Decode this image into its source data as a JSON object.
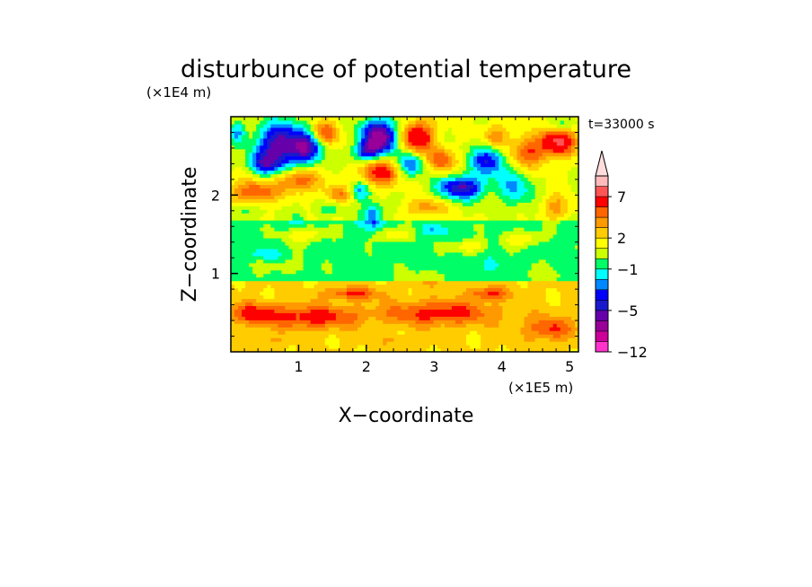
{
  "chart_data": {
    "type": "heatmap",
    "title": "disturbunce of potential temperature",
    "xlabel": "X−coordinate",
    "ylabel": "Z−coordinate",
    "x_unit": "(×1E5 m)",
    "y_unit": "(×1E4 m)",
    "time_label": "t=33000 s",
    "xlim": [
      0,
      5.13
    ],
    "ylim": [
      0,
      3.0
    ],
    "x_ticks": [
      {
        "value": 1,
        "label": "1"
      },
      {
        "value": 2,
        "label": "2"
      },
      {
        "value": 3,
        "label": "3"
      },
      {
        "value": 4,
        "label": "4"
      },
      {
        "value": 5,
        "label": "5"
      }
    ],
    "y_ticks": [
      {
        "value": 1,
        "label": "1"
      },
      {
        "value": 2,
        "label": "2"
      }
    ],
    "colorbar": {
      "extend": "max",
      "levels": [
        -12,
        -10,
        -8,
        -6,
        -5,
        -4,
        -3,
        -2,
        -1,
        0,
        1,
        2,
        3,
        4,
        5,
        7,
        9,
        11
      ],
      "colors": [
        "#ff33cc",
        "#cc0099",
        "#990099",
        "#6600aa",
        "#1a1acc",
        "#0000ff",
        "#0088ff",
        "#00ffff",
        "#00ff66",
        "#ccff00",
        "#ffff00",
        "#ffcc00",
        "#ff9900",
        "#ff6600",
        "#ff0000",
        "#ff5555",
        "#ffbbbb"
      ],
      "extend_color": "#ffdddd",
      "tick_labels": [
        {
          "level": -12,
          "label": "−12"
        },
        {
          "level": -5,
          "label": "−5"
        },
        {
          "level": -1,
          "label": "−1"
        },
        {
          "level": 2,
          "label": "2"
        },
        {
          "level": 7,
          "label": "7"
        }
      ]
    },
    "blobs": [
      {
        "x": 0.75,
        "z": 2.65,
        "v": -7,
        "rx": 0.35,
        "rz": 0.28
      },
      {
        "x": 0.5,
        "z": 2.4,
        "v": -4,
        "rx": 0.25,
        "rz": 0.15
      },
      {
        "x": 1.15,
        "z": 2.6,
        "v": -5,
        "rx": 0.2,
        "rz": 0.2
      },
      {
        "x": 2.2,
        "z": 2.75,
        "v": -8,
        "rx": 0.28,
        "rz": 0.22
      },
      {
        "x": 2.0,
        "z": 2.55,
        "v": -4,
        "rx": 0.2,
        "rz": 0.12
      },
      {
        "x": 2.65,
        "z": 2.4,
        "v": -4,
        "rx": 0.2,
        "rz": 0.15
      },
      {
        "x": 3.4,
        "z": 2.1,
        "v": -6,
        "rx": 0.35,
        "rz": 0.15
      },
      {
        "x": 3.8,
        "z": 2.45,
        "v": -5,
        "rx": 0.25,
        "rz": 0.2
      },
      {
        "x": 2.1,
        "z": 1.75,
        "v": -4,
        "rx": 0.15,
        "rz": 0.15
      },
      {
        "x": 1.9,
        "z": 2.05,
        "v": -4,
        "rx": 0.15,
        "rz": 0.12
      },
      {
        "x": 4.2,
        "z": 2.1,
        "v": -3,
        "rx": 0.25,
        "rz": 0.25
      },
      {
        "x": 0.1,
        "z": 2.8,
        "v": -3,
        "rx": 0.12,
        "rz": 0.15
      },
      {
        "x": 4.9,
        "z": 2.9,
        "v": -2,
        "rx": 0.2,
        "rz": 0.1
      },
      {
        "x": 4.85,
        "z": 2.7,
        "v": 6,
        "rx": 0.25,
        "rz": 0.18
      },
      {
        "x": 2.75,
        "z": 2.75,
        "v": 6,
        "rx": 0.25,
        "rz": 0.2
      },
      {
        "x": 2.2,
        "z": 2.3,
        "v": 5,
        "rx": 0.28,
        "rz": 0.18
      },
      {
        "x": 0.35,
        "z": 2.05,
        "v": 4,
        "rx": 0.35,
        "rz": 0.15
      },
      {
        "x": 1.0,
        "z": 2.2,
        "v": 4,
        "rx": 0.3,
        "rz": 0.15
      },
      {
        "x": 3.1,
        "z": 2.45,
        "v": 4,
        "rx": 0.2,
        "rz": 0.15
      },
      {
        "x": 4.4,
        "z": 2.55,
        "v": 4,
        "rx": 0.3,
        "rz": 0.2
      },
      {
        "x": 1.4,
        "z": 2.8,
        "v": 4,
        "rx": 0.2,
        "rz": 0.15
      },
      {
        "x": 3.9,
        "z": 2.75,
        "v": 3,
        "rx": 0.2,
        "rz": 0.15
      },
      {
        "x": 1.6,
        "z": 2.0,
        "v": 3,
        "rx": 0.25,
        "rz": 0.12
      },
      {
        "x": 2.9,
        "z": 1.85,
        "v": 2.5,
        "rx": 0.3,
        "rz": 0.12
      },
      {
        "x": 4.8,
        "z": 1.85,
        "v": 2.5,
        "rx": 0.2,
        "rz": 0.15
      },
      {
        "x": 1.1,
        "z": 1.5,
        "v": 2.5,
        "rx": 0.3,
        "rz": 0.1
      },
      {
        "x": 2.4,
        "z": 1.5,
        "v": 2.5,
        "rx": 0.25,
        "rz": 0.08
      },
      {
        "x": 3.5,
        "z": 1.35,
        "v": 2.5,
        "rx": 0.25,
        "rz": 0.08
      },
      {
        "x": 4.3,
        "z": 1.45,
        "v": 2.5,
        "rx": 0.25,
        "rz": 0.1
      },
      {
        "x": 0.8,
        "z": 1.1,
        "v": 1,
        "rx": 0.35,
        "rz": 0.1
      },
      {
        "x": 2.9,
        "z": 0.95,
        "v": 1,
        "rx": 0.4,
        "rz": 0.1
      },
      {
        "x": 4.6,
        "z": 1.0,
        "v": 1,
        "rx": 0.3,
        "rz": 0.1
      },
      {
        "x": 1.2,
        "z": 0.45,
        "v": 3.5,
        "rx": 0.7,
        "rz": 0.15
      },
      {
        "x": 3.1,
        "z": 0.5,
        "v": 3.5,
        "rx": 0.8,
        "rz": 0.15
      },
      {
        "x": 0.3,
        "z": 0.5,
        "v": 3,
        "rx": 0.4,
        "rz": 0.12
      },
      {
        "x": 4.7,
        "z": 0.3,
        "v": 3,
        "rx": 0.35,
        "rz": 0.15
      },
      {
        "x": 1.8,
        "z": 0.75,
        "v": 3,
        "rx": 0.4,
        "rz": 0.08
      },
      {
        "x": 3.8,
        "z": 0.75,
        "v": 3,
        "rx": 0.3,
        "rz": 0.08
      },
      {
        "x": 0.5,
        "z": 0.15,
        "v": 1,
        "rx": 0.3,
        "rz": 0.06
      },
      {
        "x": 2.5,
        "z": 0.15,
        "v": 1,
        "rx": 0.3,
        "rz": 0.06
      },
      {
        "x": 1.5,
        "z": 1.85,
        "v": -1.5,
        "rx": 0.3,
        "rz": 0.1
      },
      {
        "x": 0.15,
        "z": 1.8,
        "v": -1.5,
        "rx": 0.25,
        "rz": 0.1
      },
      {
        "x": 3.0,
        "z": 1.55,
        "v": -1.5,
        "rx": 0.2,
        "rz": 0.08
      },
      {
        "x": 0.5,
        "z": 1.25,
        "v": -1.5,
        "rx": 0.2,
        "rz": 0.06
      },
      {
        "x": 1.0,
        "z": 1.7,
        "v": -1.5,
        "rx": 0.1,
        "rz": 0.15
      },
      {
        "x": 3.7,
        "z": 1.1,
        "v": -0.5,
        "rx": 0.4,
        "rz": 0.1
      }
    ]
  }
}
